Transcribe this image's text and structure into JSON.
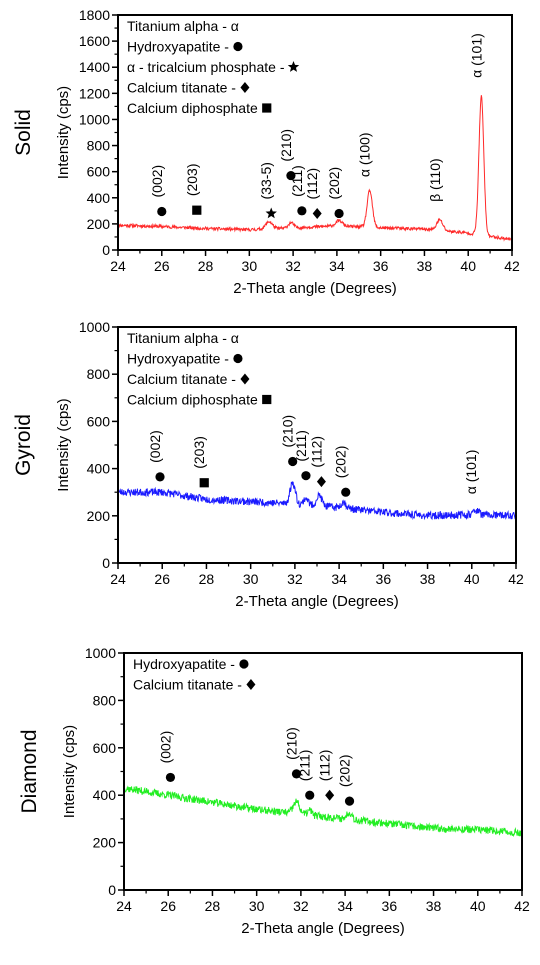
{
  "chart_data": [
    {
      "type": "line",
      "panel_label": "Solid",
      "xlabel": "2-Theta angle (Degrees)",
      "ylabel": "Intensity (cps)",
      "xlim": [
        24,
        42
      ],
      "ylim": [
        0,
        1800
      ],
      "xticks": [
        24,
        26,
        28,
        30,
        32,
        34,
        36,
        38,
        40,
        42
      ],
      "yticks": [
        0,
        200,
        400,
        600,
        800,
        1000,
        1200,
        1400,
        1600,
        1800
      ],
      "line_color": "#ff2a2a",
      "baseline": [
        [
          24,
          190
        ],
        [
          26,
          180
        ],
        [
          28,
          165
        ],
        [
          30,
          155
        ],
        [
          32,
          170
        ],
        [
          34,
          185
        ],
        [
          36,
          170
        ],
        [
          38,
          160
        ],
        [
          40,
          130
        ],
        [
          42,
          80
        ]
      ],
      "peaks": [
        {
          "x": 30.9,
          "h": 55,
          "w": 0.15
        },
        {
          "x": 31.9,
          "h": 40,
          "w": 0.12
        },
        {
          "x": 34.1,
          "h": 40,
          "w": 0.15
        },
        {
          "x": 35.5,
          "h": 280,
          "w": 0.12
        },
        {
          "x": 38.7,
          "h": 80,
          "w": 0.14
        },
        {
          "x": 40.6,
          "h": 1060,
          "w": 0.11
        }
      ],
      "noise": 12,
      "seed": 11,
      "legend": [
        {
          "text": "Titanium alpha - α",
          "symbol": ""
        },
        {
          "text": "Hydroxyapatite -",
          "symbol": "circle"
        },
        {
          "text": "α - tricalcium phosphate -",
          "symbol": "star"
        },
        {
          "text": "Calcium titanate -",
          "symbol": "diamond"
        },
        {
          "text": "Calcium diphosphate",
          "symbol": "square"
        }
      ],
      "annotations": [
        {
          "label": "(002)",
          "x": 26.0,
          "y": 295,
          "symbol": "circle",
          "rotate": true
        },
        {
          "label": "(203)",
          "x": 27.6,
          "y": 305,
          "symbol": "square",
          "rotate": true
        },
        {
          "label": "(33-5)",
          "x": 31.0,
          "y": 280,
          "symbol": "star",
          "rotate": true
        },
        {
          "label": "(210)",
          "x": 31.9,
          "y": 570,
          "symbol": "circle",
          "rotate": true
        },
        {
          "label": "(211)",
          "x": 32.4,
          "y": 300,
          "symbol": "circle",
          "rotate": true
        },
        {
          "label": "(112)",
          "x": 33.1,
          "y": 280,
          "symbol": "diamond",
          "rotate": true
        },
        {
          "label": "(202)",
          "x": 34.1,
          "y": 280,
          "symbol": "circle",
          "rotate": true
        },
        {
          "label": "α (100)",
          "x": 35.5,
          "y": 520,
          "symbol": "",
          "rotate": true
        },
        {
          "label": "β (110)",
          "x": 38.7,
          "y": 330,
          "symbol": "",
          "rotate": true
        },
        {
          "label": "α (101)",
          "x": 40.6,
          "y": 1280,
          "symbol": "",
          "rotate": true
        }
      ]
    },
    {
      "type": "line",
      "panel_label": "Gyroid",
      "xlabel": "2-Theta angle (Degrees)",
      "ylabel": "Intensity (cps)",
      "xlim": [
        24,
        42
      ],
      "ylim": [
        0,
        1000
      ],
      "xticks": [
        24,
        26,
        28,
        30,
        32,
        34,
        36,
        38,
        40,
        42
      ],
      "yticks": [
        0,
        200,
        400,
        600,
        800,
        1000
      ],
      "line_color": "#1a1aff",
      "baseline": [
        [
          24,
          300
        ],
        [
          26,
          300
        ],
        [
          28,
          270
        ],
        [
          30,
          260
        ],
        [
          32,
          250
        ],
        [
          34,
          235
        ],
        [
          36,
          215
        ],
        [
          38,
          200
        ],
        [
          40,
          205
        ],
        [
          42,
          200
        ]
      ],
      "peaks": [
        {
          "x": 31.9,
          "h": 90,
          "w": 0.12
        },
        {
          "x": 32.5,
          "h": 30,
          "w": 0.1
        },
        {
          "x": 33.1,
          "h": 45,
          "w": 0.12
        },
        {
          "x": 34.2,
          "h": 25,
          "w": 0.12
        },
        {
          "x": 40.2,
          "h": 20,
          "w": 0.12
        }
      ],
      "noise": 16,
      "seed": 23,
      "legend": [
        {
          "text": "Titanium alpha - α",
          "symbol": ""
        },
        {
          "text": "Hydroxyapatite -",
          "symbol": "circle"
        },
        {
          "text": "Calcium titanate -",
          "symbol": "diamond"
        },
        {
          "text": "Calcium diphosphate",
          "symbol": "square"
        }
      ],
      "annotations": [
        {
          "label": "(002)",
          "x": 25.9,
          "y": 365,
          "symbol": "circle",
          "rotate": true
        },
        {
          "label": "(203)",
          "x": 27.9,
          "y": 340,
          "symbol": "square",
          "rotate": true
        },
        {
          "label": "(210)",
          "x": 31.9,
          "y": 430,
          "symbol": "circle",
          "rotate": true
        },
        {
          "label": "(211)",
          "x": 32.5,
          "y": 370,
          "symbol": "circle",
          "rotate": true
        },
        {
          "label": "(112)",
          "x": 33.2,
          "y": 345,
          "symbol": "diamond",
          "rotate": true
        },
        {
          "label": "(202)",
          "x": 34.3,
          "y": 300,
          "symbol": "circle",
          "rotate": true
        },
        {
          "label": "α (101)",
          "x": 40.2,
          "y": 270,
          "symbol": "",
          "rotate": true
        }
      ]
    },
    {
      "type": "line",
      "panel_label": "Diamond",
      "xlabel": "2-Theta angle (Degrees)",
      "ylabel": "Intensity (cps)",
      "xlim": [
        24,
        42
      ],
      "ylim": [
        0,
        1000
      ],
      "xticks": [
        24,
        26,
        28,
        30,
        32,
        34,
        36,
        38,
        40,
        42
      ],
      "yticks": [
        0,
        200,
        400,
        600,
        800,
        1000
      ],
      "line_color": "#22ee22",
      "baseline": [
        [
          24,
          430
        ],
        [
          26,
          400
        ],
        [
          28,
          370
        ],
        [
          30,
          340
        ],
        [
          32,
          320
        ],
        [
          34,
          300
        ],
        [
          36,
          280
        ],
        [
          38,
          260
        ],
        [
          40,
          255
        ],
        [
          42,
          240
        ]
      ],
      "peaks": [
        {
          "x": 31.8,
          "h": 50,
          "w": 0.14
        },
        {
          "x": 32.4,
          "h": 20,
          "w": 0.1
        },
        {
          "x": 34.2,
          "h": 30,
          "w": 0.12
        }
      ],
      "noise": 16,
      "seed": 37,
      "legend": [
        {
          "text": "Hydroxyapatite -",
          "symbol": "circle"
        },
        {
          "text": "Calcium titanate -",
          "symbol": "diamond"
        }
      ],
      "annotations": [
        {
          "label": "(002)",
          "x": 26.1,
          "y": 475,
          "symbol": "circle",
          "rotate": true
        },
        {
          "label": "(210)",
          "x": 31.8,
          "y": 490,
          "symbol": "circle",
          "rotate": true
        },
        {
          "label": "(211)",
          "x": 32.4,
          "y": 400,
          "symbol": "circle",
          "rotate": true
        },
        {
          "label": "(112)",
          "x": 33.3,
          "y": 400,
          "symbol": "diamond",
          "rotate": true
        },
        {
          "label": "(202)",
          "x": 34.2,
          "y": 375,
          "symbol": "circle",
          "rotate": true
        }
      ]
    }
  ]
}
